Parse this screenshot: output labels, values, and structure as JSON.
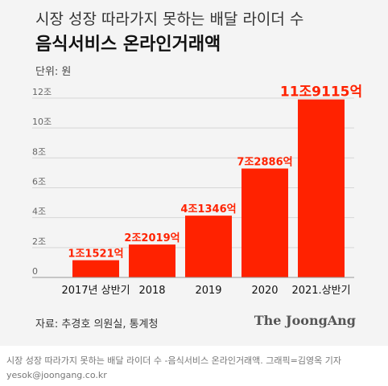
{
  "header": {
    "title_line1": "시장 성장 따라가지 못하는 배달 라이더 수",
    "title_line2": "음식서비스 온라인거래액",
    "unit": "단위: 원"
  },
  "footer": {
    "source": "자료: 추경호 의원실, 통계청",
    "logo": "The JoongAng",
    "caption_line1": "시장 성장 따라가지 못하는 배달 라이더 수 -음식서비스 온라인거래액. 그래픽=김영옥 기자",
    "caption_line2": "yesok@joongang.co.kr"
  },
  "colors": {
    "bar": "#ff2200",
    "label": "#ff2200",
    "grid": "#d6d6d6",
    "background": "#f4f4f4"
  },
  "chart_data": {
    "type": "bar",
    "categories": [
      "2017년 상반기",
      "2018",
      "2019",
      "2020",
      "2021.상반기"
    ],
    "values": [
      1.1521,
      2.2019,
      4.1346,
      7.2886,
      11.9115
    ],
    "value_labels": [
      "1조1521억",
      "2조2019억",
      "4조1346억",
      "7조2886억",
      "11조9115억"
    ],
    "yticks": [
      0,
      2,
      4,
      6,
      8,
      10,
      12
    ],
    "ytick_labels": [
      "0",
      "2조",
      "4조",
      "6조",
      "8조",
      "10조",
      "12조"
    ],
    "ylim": [
      0,
      12
    ],
    "grid": true
  }
}
